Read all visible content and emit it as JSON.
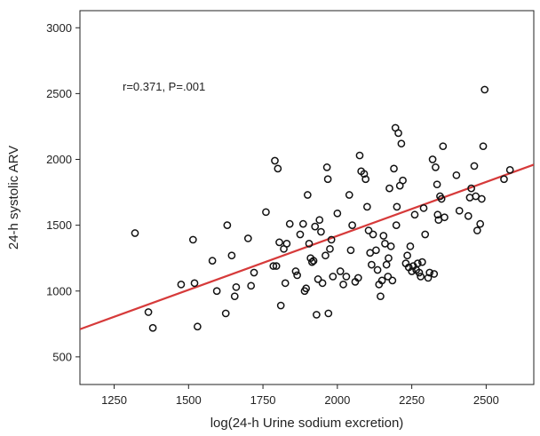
{
  "chart_data": {
    "type": "scatter",
    "xlabel": "log(24-h Urine sodium excretion)",
    "ylabel": "24-h systolic ARV",
    "annotation": "r=0.371, P=.001",
    "xlim": [
      1135,
      2660
    ],
    "ylim": [
      290,
      3130
    ],
    "xticks": [
      1250,
      1500,
      1750,
      2000,
      2250,
      2500
    ],
    "yticks": [
      500,
      1000,
      1500,
      2000,
      2500,
      3000
    ],
    "grid": false,
    "fit_line": {
      "color": "#d63a3a",
      "x": [
        1135,
        2660
      ],
      "y": [
        710,
        1960
      ]
    },
    "points": [
      [
        1320,
        1440
      ],
      [
        1365,
        840
      ],
      [
        1380,
        720
      ],
      [
        1475,
        1050
      ],
      [
        1515,
        1390
      ],
      [
        1520,
        1060
      ],
      [
        1530,
        730
      ],
      [
        1580,
        1230
      ],
      [
        1595,
        1000
      ],
      [
        1625,
        830
      ],
      [
        1630,
        1500
      ],
      [
        1645,
        1270
      ],
      [
        1655,
        960
      ],
      [
        1660,
        1030
      ],
      [
        1700,
        1400
      ],
      [
        1710,
        1040
      ],
      [
        1720,
        1140
      ],
      [
        1760,
        1600
      ],
      [
        1785,
        1190
      ],
      [
        1790,
        1990
      ],
      [
        1795,
        1190
      ],
      [
        1800,
        1930
      ],
      [
        1805,
        1370
      ],
      [
        1810,
        890
      ],
      [
        1820,
        1320
      ],
      [
        1825,
        1060
      ],
      [
        1830,
        1360
      ],
      [
        1840,
        1510
      ],
      [
        1860,
        1150
      ],
      [
        1865,
        1120
      ],
      [
        1875,
        1430
      ],
      [
        1885,
        1510
      ],
      [
        1890,
        1000
      ],
      [
        1895,
        1020
      ],
      [
        1900,
        1730
      ],
      [
        1905,
        1360
      ],
      [
        1910,
        1250
      ],
      [
        1915,
        1220
      ],
      [
        1920,
        1230
      ],
      [
        1925,
        1490
      ],
      [
        1930,
        820
      ],
      [
        1935,
        1090
      ],
      [
        1940,
        1540
      ],
      [
        1945,
        1450
      ],
      [
        1950,
        1060
      ],
      [
        1960,
        1270
      ],
      [
        1965,
        1940
      ],
      [
        1968,
        1850
      ],
      [
        1970,
        830
      ],
      [
        1975,
        1320
      ],
      [
        1980,
        1390
      ],
      [
        1985,
        1110
      ],
      [
        2000,
        1590
      ],
      [
        2010,
        1150
      ],
      [
        2020,
        1050
      ],
      [
        2030,
        1110
      ],
      [
        2040,
        1730
      ],
      [
        2045,
        1310
      ],
      [
        2050,
        1500
      ],
      [
        2060,
        1070
      ],
      [
        2070,
        1100
      ],
      [
        2075,
        2030
      ],
      [
        2080,
        1910
      ],
      [
        2090,
        1890
      ],
      [
        2095,
        1850
      ],
      [
        2100,
        1640
      ],
      [
        2105,
        1460
      ],
      [
        2110,
        1290
      ],
      [
        2115,
        1200
      ],
      [
        2120,
        1430
      ],
      [
        2130,
        1310
      ],
      [
        2135,
        1160
      ],
      [
        2140,
        1050
      ],
      [
        2145,
        960
      ],
      [
        2150,
        1080
      ],
      [
        2155,
        1420
      ],
      [
        2160,
        1360
      ],
      [
        2165,
        1200
      ],
      [
        2170,
        1110
      ],
      [
        2172,
        1250
      ],
      [
        2175,
        1780
      ],
      [
        2180,
        1340
      ],
      [
        2185,
        1080
      ],
      [
        2190,
        1930
      ],
      [
        2195,
        2240
      ],
      [
        2198,
        1500
      ],
      [
        2200,
        1640
      ],
      [
        2205,
        2200
      ],
      [
        2210,
        1800
      ],
      [
        2215,
        2120
      ],
      [
        2220,
        1840
      ],
      [
        2230,
        1210
      ],
      [
        2235,
        1270
      ],
      [
        2240,
        1180
      ],
      [
        2245,
        1340
      ],
      [
        2250,
        1150
      ],
      [
        2255,
        1190
      ],
      [
        2260,
        1580
      ],
      [
        2265,
        1160
      ],
      [
        2270,
        1210
      ],
      [
        2275,
        1140
      ],
      [
        2280,
        1110
      ],
      [
        2285,
        1220
      ],
      [
        2290,
        1630
      ],
      [
        2295,
        1430
      ],
      [
        2305,
        1100
      ],
      [
        2310,
        1140
      ],
      [
        2320,
        2000
      ],
      [
        2325,
        1130
      ],
      [
        2330,
        1940
      ],
      [
        2335,
        1810
      ],
      [
        2337,
        1580
      ],
      [
        2340,
        1540
      ],
      [
        2345,
        1720
      ],
      [
        2350,
        1700
      ],
      [
        2355,
        2100
      ],
      [
        2360,
        1560
      ],
      [
        2400,
        1880
      ],
      [
        2410,
        1610
      ],
      [
        2440,
        1570
      ],
      [
        2445,
        1710
      ],
      [
        2450,
        1780
      ],
      [
        2460,
        1950
      ],
      [
        2465,
        1720
      ],
      [
        2470,
        1460
      ],
      [
        2480,
        1510
      ],
      [
        2485,
        1700
      ],
      [
        2490,
        2100
      ],
      [
        2495,
        2530
      ],
      [
        2560,
        1850
      ],
      [
        2580,
        1920
      ]
    ]
  }
}
